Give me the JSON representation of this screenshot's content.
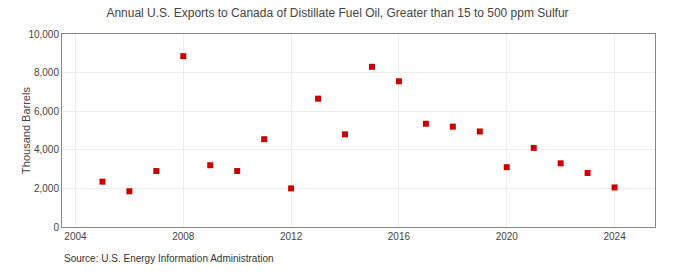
{
  "chart_data": {
    "type": "scatter",
    "title": "Annual U.S. Exports to Canada of Distillate Fuel Oil, Greater than 15 to 500 ppm Sulfur",
    "ylabel": "Thousand Barrels",
    "annotations": [
      "Source: U.S. Energy Information Administration"
    ],
    "x": [
      2005,
      2006,
      2007,
      2008,
      2009,
      2010,
      2011,
      2012,
      2013,
      2014,
      2015,
      2016,
      2017,
      2018,
      2019,
      2020,
      2021,
      2022,
      2023,
      2024
    ],
    "values": [
      2350,
      1850,
      2900,
      8850,
      3200,
      2900,
      4550,
      2000,
      6650,
      4800,
      8300,
      7550,
      5350,
      5200,
      4950,
      3100,
      4100,
      3300,
      2800,
      2050
    ],
    "color": "#cc0000",
    "marker": "square",
    "xlim": [
      2003.5,
      2025.5
    ],
    "ylim": [
      0,
      10000
    ],
    "xticks": [
      2004,
      2008,
      2012,
      2016,
      2020,
      2024
    ],
    "yticks": [
      0,
      {
        "value": 2000,
        "label": "2,000"
      },
      {
        "value": 4000,
        "label": "4,000"
      },
      {
        "value": 6000,
        "label": "6,000"
      },
      {
        "value": 8000,
        "label": "8,000"
      },
      {
        "value": 10000,
        "label": "10,000"
      }
    ],
    "grid": true
  }
}
